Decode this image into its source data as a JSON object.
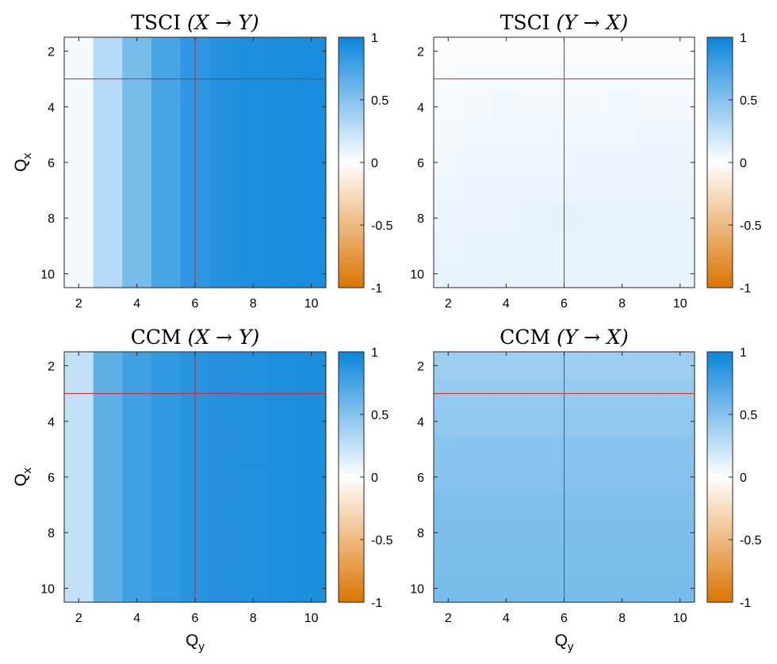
{
  "chart_data": [
    {
      "type": "heatmap",
      "title_prefix": "TSCI",
      "title_rel": "(X → Y)",
      "xlabel": "",
      "ylabel": "Qx",
      "x": [
        2,
        3,
        4,
        5,
        6,
        7,
        8,
        9,
        10
      ],
      "y": [
        2,
        3,
        4,
        5,
        6,
        7,
        8,
        9,
        10
      ],
      "xticks": [
        2,
        4,
        6,
        8,
        10
      ],
      "yticks": [
        2,
        4,
        6,
        8,
        10
      ],
      "clim": [
        -1,
        1
      ],
      "colorbar_ticks": [
        "1",
        "0.5",
        "0",
        "-0.5",
        "-1"
      ],
      "crosshair": {
        "x": 6,
        "y": 3
      },
      "values": [
        [
          0.05,
          0.3,
          0.55,
          0.75,
          0.85,
          0.9,
          0.92,
          0.93,
          0.94
        ],
        [
          0.05,
          0.3,
          0.55,
          0.75,
          0.85,
          0.9,
          0.92,
          0.93,
          0.94
        ],
        [
          0.05,
          0.3,
          0.55,
          0.75,
          0.85,
          0.9,
          0.92,
          0.93,
          0.94
        ],
        [
          0.05,
          0.3,
          0.55,
          0.75,
          0.85,
          0.9,
          0.92,
          0.93,
          0.94
        ],
        [
          0.05,
          0.3,
          0.55,
          0.75,
          0.85,
          0.9,
          0.92,
          0.93,
          0.94
        ],
        [
          0.05,
          0.3,
          0.55,
          0.75,
          0.85,
          0.9,
          0.92,
          0.93,
          0.94
        ],
        [
          0.05,
          0.3,
          0.55,
          0.75,
          0.85,
          0.9,
          0.92,
          0.93,
          0.94
        ],
        [
          0.05,
          0.3,
          0.55,
          0.75,
          0.85,
          0.9,
          0.92,
          0.93,
          0.94
        ],
        [
          0.05,
          0.3,
          0.55,
          0.75,
          0.85,
          0.9,
          0.92,
          0.93,
          0.94
        ]
      ]
    },
    {
      "type": "heatmap",
      "title_prefix": "TSCI",
      "title_rel": "(Y → X)",
      "xlabel": "",
      "ylabel": "",
      "x": [
        2,
        3,
        4,
        5,
        6,
        7,
        8,
        9,
        10
      ],
      "y": [
        2,
        3,
        4,
        5,
        6,
        7,
        8,
        9,
        10
      ],
      "xticks": [
        2,
        4,
        6,
        8,
        10
      ],
      "yticks": [
        2,
        4,
        6,
        8,
        10
      ],
      "clim": [
        -1,
        1
      ],
      "colorbar_ticks": [
        "1",
        "0.5",
        "0",
        "-0.5",
        "-1"
      ],
      "crosshair": {
        "x": 6,
        "y": 3
      },
      "values": [
        [
          0.02,
          0.02,
          0.02,
          0.02,
          0.02,
          0.02,
          0.02,
          0.02,
          0.02
        ],
        [
          0.03,
          0.04,
          0.04,
          0.04,
          0.04,
          0.04,
          0.04,
          0.04,
          0.04
        ],
        [
          0.04,
          0.05,
          0.06,
          0.05,
          0.05,
          0.05,
          0.06,
          0.05,
          0.05
        ],
        [
          0.05,
          0.06,
          0.06,
          0.06,
          0.06,
          0.06,
          0.06,
          0.07,
          0.07
        ],
        [
          0.06,
          0.07,
          0.07,
          0.07,
          0.07,
          0.08,
          0.08,
          0.08,
          0.08
        ],
        [
          0.07,
          0.08,
          0.08,
          0.09,
          0.09,
          0.09,
          0.09,
          0.09,
          0.09
        ],
        [
          0.08,
          0.09,
          0.09,
          0.1,
          0.11,
          0.1,
          0.1,
          0.1,
          0.1
        ],
        [
          0.09,
          0.1,
          0.1,
          0.1,
          0.1,
          0.1,
          0.1,
          0.1,
          0.1
        ],
        [
          0.1,
          0.1,
          0.1,
          0.1,
          0.1,
          0.1,
          0.1,
          0.1,
          0.1
        ]
      ]
    },
    {
      "type": "heatmap",
      "title_prefix": "CCM",
      "title_rel": "(X → Y)",
      "xlabel": "Qy",
      "ylabel": "Qx",
      "x": [
        2,
        3,
        4,
        5,
        6,
        7,
        8,
        9,
        10
      ],
      "y": [
        2,
        3,
        4,
        5,
        6,
        7,
        8,
        9,
        10
      ],
      "xticks": [
        2,
        4,
        6,
        8,
        10
      ],
      "yticks": [
        2,
        4,
        6,
        8,
        10
      ],
      "clim": [
        -1,
        1
      ],
      "colorbar_ticks": [
        "1",
        "0.5",
        "0",
        "-0.5",
        "-1"
      ],
      "crosshair": {
        "x": 6,
        "y": 3
      },
      "values": [
        [
          0.25,
          0.65,
          0.78,
          0.84,
          0.88,
          0.9,
          0.91,
          0.92,
          0.93
        ],
        [
          0.25,
          0.65,
          0.78,
          0.84,
          0.88,
          0.9,
          0.91,
          0.92,
          0.93
        ],
        [
          0.25,
          0.65,
          0.78,
          0.84,
          0.88,
          0.9,
          0.91,
          0.92,
          0.93
        ],
        [
          0.25,
          0.65,
          0.78,
          0.84,
          0.88,
          0.9,
          0.91,
          0.92,
          0.93
        ],
        [
          0.25,
          0.65,
          0.78,
          0.84,
          0.88,
          0.9,
          0.91,
          0.92,
          0.93
        ],
        [
          0.25,
          0.65,
          0.78,
          0.84,
          0.88,
          0.9,
          0.91,
          0.92,
          0.93
        ],
        [
          0.25,
          0.65,
          0.78,
          0.84,
          0.88,
          0.9,
          0.91,
          0.92,
          0.93
        ],
        [
          0.25,
          0.65,
          0.78,
          0.84,
          0.88,
          0.9,
          0.91,
          0.92,
          0.93
        ],
        [
          0.25,
          0.65,
          0.78,
          0.84,
          0.88,
          0.9,
          0.91,
          0.92,
          0.93
        ]
      ]
    },
    {
      "type": "heatmap",
      "title_prefix": "CCM",
      "title_rel": "(Y → X)",
      "xlabel": "Qy",
      "ylabel": "",
      "x": [
        2,
        3,
        4,
        5,
        6,
        7,
        8,
        9,
        10
      ],
      "y": [
        2,
        3,
        4,
        5,
        6,
        7,
        8,
        9,
        10
      ],
      "xticks": [
        2,
        4,
        6,
        8,
        10
      ],
      "yticks": [
        2,
        4,
        6,
        8,
        10
      ],
      "clim": [
        -1,
        1
      ],
      "colorbar_ticks": [
        "1",
        "0.5",
        "0",
        "-0.5",
        "-1"
      ],
      "crosshair": {
        "x": 6,
        "y": 3
      },
      "values": [
        [
          0.4,
          0.4,
          0.4,
          0.4,
          0.4,
          0.4,
          0.4,
          0.4,
          0.4
        ],
        [
          0.43,
          0.43,
          0.43,
          0.43,
          0.43,
          0.43,
          0.43,
          0.43,
          0.43
        ],
        [
          0.45,
          0.45,
          0.45,
          0.45,
          0.45,
          0.45,
          0.45,
          0.45,
          0.45
        ],
        [
          0.48,
          0.48,
          0.48,
          0.48,
          0.48,
          0.48,
          0.48,
          0.48,
          0.48
        ],
        [
          0.5,
          0.5,
          0.5,
          0.5,
          0.5,
          0.5,
          0.5,
          0.5,
          0.5
        ],
        [
          0.52,
          0.52,
          0.52,
          0.52,
          0.52,
          0.52,
          0.52,
          0.52,
          0.52
        ],
        [
          0.53,
          0.53,
          0.53,
          0.53,
          0.53,
          0.53,
          0.53,
          0.53,
          0.53
        ],
        [
          0.54,
          0.54,
          0.54,
          0.54,
          0.54,
          0.54,
          0.54,
          0.54,
          0.54
        ],
        [
          0.55,
          0.55,
          0.55,
          0.55,
          0.55,
          0.55,
          0.55,
          0.55,
          0.55
        ]
      ]
    }
  ],
  "colors": {
    "positive": "#0a85dc",
    "neutral": "#ffffff",
    "negative": "#db7400",
    "crosshair": "#e02020"
  }
}
